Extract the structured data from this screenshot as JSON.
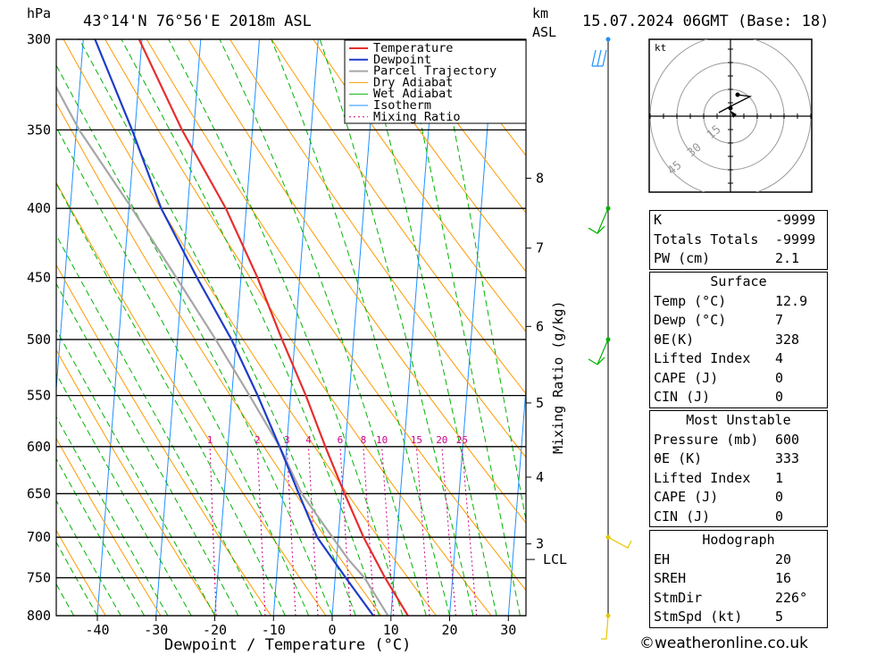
{
  "header": {
    "units_hpa": "hPa",
    "location": "43°14'N  76°56'E  2018m  ASL",
    "units_km": "km",
    "units_asl": "ASL",
    "datetime": "15.07.2024  06GMT  (Base: 18)"
  },
  "chart_data": {
    "type": "line",
    "title": "43°14'N  76°56'E  2018m  ASL",
    "xlabel": "Dewpoint / Temperature (°C)",
    "ylabel": "hPa",
    "y_scale": "log",
    "xlim": [
      -47,
      33
    ],
    "ylim": [
      800,
      300
    ],
    "x_ticks": [
      -40,
      -30,
      -20,
      -10,
      0,
      10,
      20,
      30
    ],
    "pressure_levels": [
      300,
      350,
      400,
      450,
      500,
      550,
      600,
      650,
      700,
      750,
      800
    ],
    "km_ticks": [
      {
        "label": "8",
        "p": 380
      },
      {
        "label": "7",
        "p": 428
      },
      {
        "label": "6",
        "p": 489
      },
      {
        "label": "5",
        "p": 557
      },
      {
        "label": "4",
        "p": 632
      },
      {
        "label": "3",
        "p": 708
      }
    ],
    "lcl": {
      "label": "LCL",
      "p": 727
    },
    "mixing_ratio_label": "Mixing Ratio (g/kg)",
    "mixing_ratio_values": [
      "1",
      "2",
      "3",
      "4",
      "6",
      "8",
      "10",
      "15",
      "20",
      "25"
    ],
    "legend": [
      "Temperature",
      "Dewpoint",
      "Parcel Trajectory",
      "Dry Adiabat",
      "Wet Adiabat",
      "Isotherm",
      "Mixing Ratio"
    ],
    "legend_position": "top-right",
    "colors": {
      "temperature": "#e62e2e",
      "dewpoint": "#1e3cc8",
      "parcel": "#a6a6a6",
      "dry_adiabat": "#ff9900",
      "wet_adiabat": "#00b300",
      "isotherm": "#1e90ff",
      "mixing_ratio": "#cc0088"
    },
    "series": [
      {
        "name": "Temperature",
        "points": [
          [
            800,
            12.9
          ],
          [
            750,
            8.5
          ],
          [
            700,
            4.3
          ],
          [
            650,
            0.5
          ],
          [
            600,
            -3.4
          ],
          [
            550,
            -7.4
          ],
          [
            500,
            -12.2
          ],
          [
            450,
            -17.2
          ],
          [
            400,
            -23.5
          ],
          [
            350,
            -32
          ],
          [
            300,
            -40.5
          ]
        ]
      },
      {
        "name": "Dewpoint",
        "points": [
          [
            800,
            7
          ],
          [
            750,
            1.8
          ],
          [
            700,
            -3.6
          ],
          [
            650,
            -7.3
          ],
          [
            600,
            -11.2
          ],
          [
            550,
            -15.6
          ],
          [
            500,
            -20.8
          ],
          [
            450,
            -27.5
          ],
          [
            400,
            -34.5
          ],
          [
            350,
            -40.5
          ],
          [
            300,
            -48
          ]
        ]
      },
      {
        "name": "Parcel Trajectory",
        "points": [
          [
            800,
            9.5
          ],
          [
            750,
            5
          ],
          [
            727,
            2
          ],
          [
            700,
            -1
          ],
          [
            650,
            -6.8
          ],
          [
            600,
            -11.2
          ],
          [
            550,
            -17
          ],
          [
            500,
            -23.5
          ],
          [
            450,
            -31
          ],
          [
            400,
            -39.5
          ],
          [
            350,
            -49.5
          ],
          [
            300,
            -59
          ]
        ]
      }
    ]
  },
  "wind_profile": {
    "barbs": [
      {
        "p": 300
      },
      {
        "p": 400
      },
      {
        "p": 500
      },
      {
        "p": 700
      },
      {
        "p": 800
      }
    ]
  },
  "hodograph": {
    "unit": "kt",
    "rings": [
      "15",
      "30",
      "45"
    ]
  },
  "indices": {
    "rows": [
      {
        "label": "K",
        "value": "-9999"
      },
      {
        "label": "Totals Totals",
        "value": "-9999"
      },
      {
        "label": "PW (cm)",
        "value": "2.1"
      }
    ]
  },
  "surface": {
    "title": "Surface",
    "rows": [
      {
        "label": "Temp (°C)",
        "value": "12.9"
      },
      {
        "label": "Dewp (°C)",
        "value": "7"
      },
      {
        "label": "θE(K)",
        "value": "328"
      },
      {
        "label": "Lifted Index",
        "value": "4"
      },
      {
        "label": "CAPE (J)",
        "value": "0"
      },
      {
        "label": "CIN (J)",
        "value": "0"
      }
    ]
  },
  "most_unstable": {
    "title": "Most Unstable",
    "rows": [
      {
        "label": "Pressure (mb)",
        "value": "600"
      },
      {
        "label": "θE (K)",
        "value": "333"
      },
      {
        "label": "Lifted Index",
        "value": "1"
      },
      {
        "label": "CAPE (J)",
        "value": "0"
      },
      {
        "label": "CIN (J)",
        "value": "0"
      }
    ]
  },
  "hodograph_stats": {
    "title": "Hodograph",
    "rows": [
      {
        "label": "EH",
        "value": "20"
      },
      {
        "label": "SREH",
        "value": "16"
      },
      {
        "label": "StmDir",
        "value": "226°"
      },
      {
        "label": "StmSpd (kt)",
        "value": "5"
      }
    ]
  },
  "credit": "©weatheronline.co.uk"
}
